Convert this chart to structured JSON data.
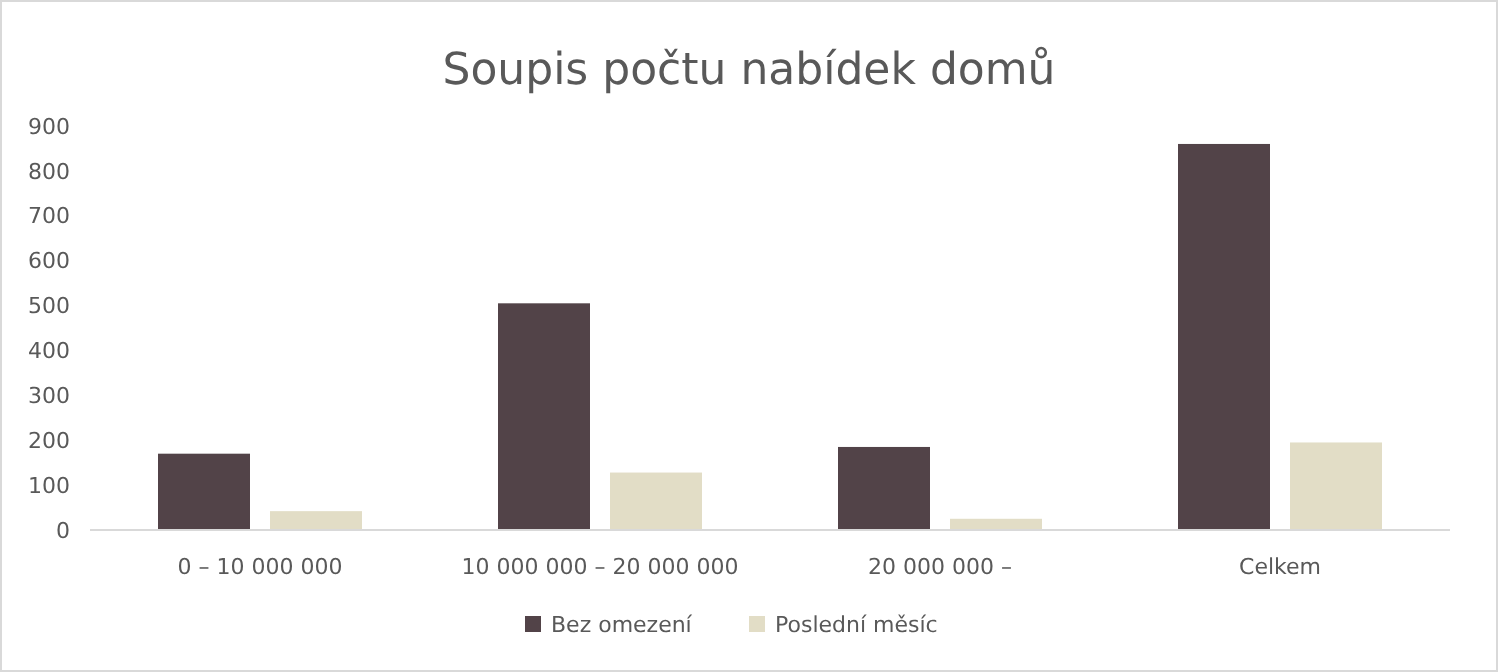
{
  "chart_data": {
    "type": "bar",
    "title": "Soupis počtu nabídek domů",
    "categories": [
      "0 – 10 000 000",
      "10 000 000 – 20 000 000",
      "20 000 000 –",
      "Celkem"
    ],
    "series": [
      {
        "name": "Bez omezení",
        "color": "#524348",
        "values": [
          170,
          505,
          185,
          860
        ]
      },
      {
        "name": "Poslední měsíc",
        "color": "#e2ddc6",
        "values": [
          42,
          128,
          25,
          195
        ]
      }
    ],
    "ylim": [
      0,
      900
    ],
    "yticks": [
      0,
      100,
      200,
      300,
      400,
      500,
      600,
      700,
      800,
      900
    ],
    "grid": false,
    "legend": "bottom"
  }
}
